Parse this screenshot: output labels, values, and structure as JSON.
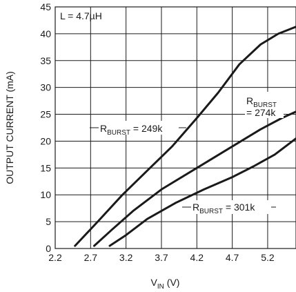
{
  "chart_data": {
    "type": "line",
    "xlabel": "V",
    "xlabel_sub": "IN",
    "xlabel_unit": " (V)",
    "ylabel": "OUTPUT CURRENT (mA)",
    "xlim": [
      2.2,
      5.6
    ],
    "ylim": [
      0,
      45
    ],
    "x_ticks": [
      "2.2",
      "2.7",
      "3.2",
      "3.7",
      "4.2",
      "4.7",
      "5.2"
    ],
    "y_ticks": [
      "0",
      "5",
      "10",
      "15",
      "20",
      "25",
      "30",
      "35",
      "40",
      "45"
    ],
    "grid": true,
    "annotation": "L = 4.7µH",
    "series": [
      {
        "label_main": "R",
        "label_sub": "BURST",
        "label_rest": " = 249k",
        "x": [
          2.48,
          2.8,
          3.15,
          3.5,
          3.85,
          4.2,
          4.5,
          4.8,
          5.1,
          5.35,
          5.6
        ],
        "y": [
          0.5,
          5,
          10,
          14.5,
          19,
          24.3,
          29,
          34.3,
          38,
          40,
          41.3
        ]
      },
      {
        "label_main": "R",
        "label_sub": "BURST",
        "label_rest": "",
        "label_line2": "= 274k",
        "x": [
          2.75,
          3.0,
          3.3,
          3.7,
          4.2,
          4.7,
          5.1,
          5.4,
          5.6
        ],
        "y": [
          0.5,
          3.5,
          7,
          11,
          15,
          19,
          22.2,
          24.3,
          25.5
        ]
      },
      {
        "label_main": "R",
        "label_sub": "BURST",
        "label_rest": " = 301k",
        "x": [
          2.97,
          3.2,
          3.5,
          3.9,
          4.3,
          4.7,
          5.0,
          5.3,
          5.6
        ],
        "y": [
          0.5,
          2.5,
          5.5,
          8.5,
          11,
          13.3,
          15.3,
          17.5,
          20.5
        ]
      }
    ]
  }
}
